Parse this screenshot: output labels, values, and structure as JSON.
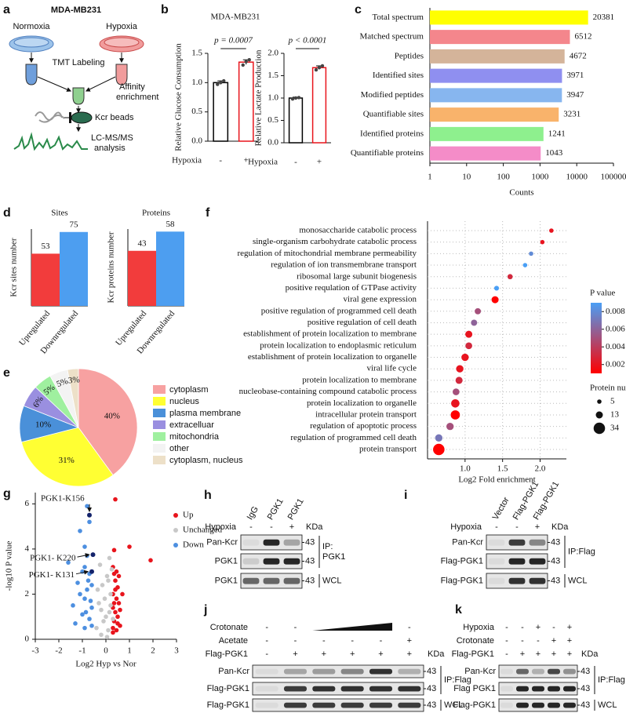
{
  "workflow": {
    "label": "a",
    "cell_line": "MDA-MB231",
    "conditions": [
      "Normoxia",
      "Hypoxia"
    ],
    "labeling": "TMT Labeling",
    "enrichment": [
      "Affinity",
      "enrichment"
    ],
    "beads": "Kcr beads",
    "analysis": [
      "LC-MS/MS",
      "analysis"
    ]
  },
  "chart_data": [
    {
      "type": "bar",
      "panel": "b",
      "title": "MDA-MB231",
      "y_label": "Relative Glucose Consumption",
      "x_label": "Hypoxia",
      "categories": [
        "-",
        "+"
      ],
      "values": [
        1.0,
        1.35
      ],
      "errors": [
        0.03,
        0.04
      ],
      "points": [
        [
          0.97,
          1.0,
          1.03
        ],
        [
          1.3,
          1.36,
          1.39
        ]
      ],
      "colors": [
        "#000000",
        "#e8141c"
      ],
      "fill": "#ffffff",
      "ylim": [
        0,
        1.5
      ],
      "yticks": [
        {
          "value": 0,
          "label": "0.0"
        },
        0.5,
        {
          "value": 1,
          "label": "1.0"
        },
        1.5
      ],
      "annotation": "p = 0.0007"
    },
    {
      "type": "bar",
      "y_label": "Relative Lactate Production",
      "x_label": "Hypoxia",
      "categories": [
        "-",
        "+"
      ],
      "values": [
        1.0,
        1.68
      ],
      "errors": [
        0.02,
        0.04
      ],
      "points": [
        [
          0.98,
          1.0,
          1.01
        ],
        [
          1.63,
          1.68,
          1.72
        ]
      ],
      "colors": [
        "#000000",
        "#e8141c"
      ],
      "fill": "#ffffff",
      "ylim": [
        0,
        2
      ],
      "yticks": [
        {
          "value": 0,
          "label": "0.0"
        },
        0.5,
        {
          "value": 1,
          "label": "1.0"
        },
        1.5,
        {
          "value": 2,
          "label": "2.0"
        }
      ],
      "annotation": "p < 0.0001"
    },
    {
      "type": "bar",
      "panel": "c",
      "horizontal": true,
      "log_x": true,
      "categories": [
        "Total spectrum",
        "Matched spectrum",
        "Peptides",
        "Identified sites",
        "Modified peptides",
        "Quantifiable sites",
        "Identified proteins",
        "Quantifiable proteins"
      ],
      "values": [
        20381,
        6512,
        4672,
        3971,
        3947,
        3231,
        1241,
        1043
      ],
      "colors": [
        "#ffff00",
        "#f4868c",
        "#d4b49a",
        "#8f8ff0",
        "#87b6ef",
        "#f9b36b",
        "#8ef08e",
        "#f48cc8"
      ],
      "xlim": [
        1,
        100000
      ],
      "xticks": [
        1,
        10,
        100,
        1000,
        10000,
        100000
      ],
      "x_label": "Counts",
      "data_labels": true
    },
    {
      "type": "bar",
      "panel": "d",
      "title": "Sites",
      "y_label": "Kcr sites number",
      "categories": [
        "Upregulated",
        "Downregulated"
      ],
      "values": [
        53,
        75
      ],
      "colors": [
        "#f23c3c",
        "#4d9ef0"
      ],
      "ylim": [
        0,
        78
      ],
      "data_labels": true
    },
    {
      "type": "bar",
      "title": "Proteins",
      "y_label": "Kcr proteins number",
      "categories": [
        "Upregulated",
        "Downregulated"
      ],
      "values": [
        43,
        58
      ],
      "colors": [
        "#f23c3c",
        "#4d9ef0"
      ],
      "ylim": [
        0,
        60
      ],
      "data_labels": true
    },
    {
      "type": "pie",
      "panel": "e",
      "categories": [
        "cytoplasm",
        "nucleus",
        "plasma membrane",
        "extracelluar",
        "mitochondria",
        "other",
        "cytoplasm, nucleus"
      ],
      "values": [
        40,
        31,
        10,
        6,
        5,
        5,
        3
      ],
      "value_labels": [
        "40%",
        "31%",
        "10%",
        "6%",
        "5%",
        "5%",
        "3%"
      ],
      "colors": [
        "#f7a1a1",
        "#ffff33",
        "#4a90d9",
        "#9a8fe0",
        "#9ff09f",
        "#f3f3f3",
        "#ede0c8"
      ]
    },
    {
      "type": "bubble",
      "panel": "f",
      "categories": [
        "monosaccharide catabolic process",
        "single-organism carbohydrate catabolic process",
        "regulation of mitochondrial membrane permeability",
        "regulation of ion transmembrane transport",
        "ribosomal large subunit biogenesis",
        "positive requlation of GTPase activity",
        "viral gene expression",
        "positive regulation of programmed cell death",
        "positive regulation of cell death",
        "establishment of protein localization to membrane",
        "protein localization to endoplasmic reticulum",
        "establishment of protein localization to organelle",
        "viral life cycle",
        "protein localization to membrane",
        "nucleobase-containing compound catabolic process",
        "protein localization to organelle",
        "intracellular protein transport",
        "regulation of apoptotic process",
        "regulation of programmed cell death",
        "protein transport"
      ],
      "x": [
        2.15,
        2.03,
        1.88,
        1.8,
        1.6,
        1.42,
        1.4,
        1.17,
        1.12,
        1.05,
        1.05,
        1.0,
        0.93,
        0.92,
        0.88,
        0.87,
        0.87,
        0.8,
        0.65,
        0.65
      ],
      "pvalues": [
        0.002,
        0.002,
        0.008,
        0.009,
        0.003,
        0.009,
        0.001,
        0.005,
        0.006,
        0.002,
        0.003,
        0.002,
        0.002,
        0.003,
        0.005,
        0.002,
        0.001,
        0.005,
        0.007,
        0.001
      ],
      "sizes": [
        5,
        5,
        5,
        5,
        7,
        6,
        13,
        10,
        10,
        13,
        12,
        14,
        14,
        13,
        12,
        18,
        22,
        14,
        14,
        34
      ],
      "xlim": [
        0.5,
        2.35
      ],
      "xticks": [
        {
          "value": 1,
          "label": "1.0"
        },
        1.5,
        {
          "value": 2,
          "label": "2.0"
        }
      ],
      "x_label": "Log2 Fold enrichment",
      "grid": true,
      "color_label": "P value",
      "color_range": [
        0.001,
        0.009
      ],
      "color_ticks": [
        0.002,
        0.004,
        0.006,
        0.008
      ],
      "colors": [
        "#ff0000",
        "#4a9ff5"
      ],
      "size_label": "Protein number",
      "size_ticks": [
        5,
        13,
        34
      ]
    },
    {
      "type": "scatter",
      "panel": "g",
      "y_label": "-log10 P value",
      "x_label": "Log2 Hyp vs Nor",
      "xlim": [
        -3,
        3
      ],
      "xticks": [
        -3,
        -2,
        -1,
        0,
        1,
        2,
        3
      ],
      "ylim": [
        0,
        6.5
      ],
      "yticks": [
        0,
        2,
        4,
        6
      ],
      "series": [
        {
          "name": "Up",
          "color": "#e8141c",
          "x": [
            0.4,
            0.35,
            1.0,
            1.9,
            0.3,
            0.35,
            0.4,
            0.5,
            0.3,
            0.45,
            0.55,
            0.3,
            0.4,
            0.5,
            0.35,
            0.6,
            0.3,
            0.45,
            0.55,
            0.4,
            0.6,
            0.5,
            0.35,
            0.45,
            0.7,
            0.3
          ],
          "y": [
            6.2,
            3.95,
            4.1,
            3.5,
            3.2,
            2.9,
            2.6,
            2.3,
            2.0,
            1.8,
            1.6,
            1.4,
            1.2,
            1.0,
            0.8,
            0.6,
            0.5,
            0.4,
            2.8,
            2.2,
            1.3,
            0.7,
            1.6,
            3.0,
            2.0,
            0.3
          ]
        },
        {
          "name": "Unchanged",
          "color": "#c8c8c8",
          "x": [
            -0.2,
            0.1,
            -0.1,
            0.15,
            -0.3,
            0.2,
            -0.15,
            0.05,
            0.25,
            -0.25,
            0.0,
            -0.4,
            0.3,
            -0.05,
            0.1,
            -0.35,
            0.2,
            -0.2,
            0.05,
            0.15
          ],
          "y": [
            0.2,
            0.4,
            0.8,
            1.2,
            1.6,
            2.0,
            2.4,
            2.8,
            3.1,
            3.3,
            1.0,
            0.5,
            0.9,
            1.8,
            2.6,
            2.2,
            1.5,
            1.3,
            0.1,
            3.6
          ]
        },
        {
          "name": "Down",
          "color": "#4d8fe0",
          "x": [
            -0.8,
            -0.7,
            -1.1,
            -0.9,
            -0.8,
            -1.6,
            -0.9,
            -0.7,
            -1.2,
            -0.8,
            -1.4,
            -0.9,
            -0.6,
            -1.0,
            -0.7,
            -1.3,
            -0.6,
            -0.9,
            -0.75,
            -1.1,
            -0.65,
            -1.0,
            -0.85,
            -0.6
          ],
          "y": [
            5.9,
            5.2,
            4.8,
            4.1,
            3.7,
            3.4,
            3.2,
            2.9,
            2.5,
            2.2,
            1.5,
            1.8,
            1.4,
            1.1,
            0.9,
            0.7,
            0.6,
            0.5,
            2.6,
            2.0,
            1.7,
            3.0,
            1.2,
            2.4
          ]
        }
      ],
      "annotations": [
        {
          "text": "PGK1-K156",
          "x": -0.7,
          "y": 5.5
        },
        {
          "text": "PGK1- K220",
          "x": -0.55,
          "y": 3.75
        },
        {
          "text": "PGK1- K131",
          "x": -0.6,
          "y": 3.0
        }
      ]
    }
  ],
  "blots": [
    {
      "panel": "h",
      "lanes": [
        "IgG",
        "PGK1",
        "PGK1"
      ],
      "conditions": [
        {
          "name": "Hypoxia",
          "marks": [
            "-",
            "-",
            "+"
          ]
        }
      ],
      "unit": "KDa",
      "rows": [
        {
          "name": "Pan-Kcr",
          "kda": "43"
        },
        {
          "name": "PGK1",
          "kda": "43"
        },
        {
          "name": "PGK1",
          "kda": "43"
        }
      ],
      "groups": [
        [
          "IP:",
          "PGK1"
        ],
        [
          "WCL"
        ]
      ]
    },
    {
      "panel": "i",
      "lanes": [
        "Vector",
        "Flag-PGK1",
        "Flag-PGK1"
      ],
      "conditions": [
        {
          "name": "Hypoxia",
          "marks": [
            "-",
            "-",
            "+"
          ]
        }
      ],
      "unit": "KDa",
      "rows": [
        {
          "name": "Pan-Kcr",
          "kda": "43"
        },
        {
          "name": "Flag-PGK1",
          "kda": "43"
        },
        {
          "name": "Flag-PGK1",
          "kda": "43"
        }
      ],
      "groups": [
        [
          "IP:Flag"
        ],
        [
          "WCL"
        ]
      ]
    },
    {
      "panel": "j",
      "conditions": [
        {
          "name": "Crotonate",
          "marks": [
            "-",
            "-",
            null,
            null,
            null,
            "-"
          ]
        },
        {
          "name": "Acetate",
          "marks": [
            "-",
            "-",
            "-",
            "-",
            "-",
            "+"
          ]
        },
        {
          "name": "Flag-PGK1",
          "marks": [
            "-",
            "+",
            "+",
            "+",
            "+",
            "+"
          ]
        }
      ],
      "unit": "KDa",
      "rows": [
        {
          "name": "Pan-Kcr",
          "kda": "43"
        },
        {
          "name": "Flag-PGK1",
          "kda": "43"
        },
        {
          "name": "Flag-PGK1",
          "kda": "43"
        }
      ],
      "groups": [
        [
          "IP:Flag"
        ],
        [
          "WCL"
        ]
      ]
    },
    {
      "panel": "k",
      "conditions": [
        {
          "name": "Hypoxia",
          "marks": [
            "-",
            "-",
            "+",
            "-",
            "+"
          ]
        },
        {
          "name": "Crotonate",
          "marks": [
            "-",
            "-",
            "-",
            "+",
            "+"
          ]
        },
        {
          "name": "Flag-PGK1",
          "marks": [
            "-",
            "+",
            "+",
            "+",
            "+"
          ]
        }
      ],
      "unit": "KDa",
      "rows": [
        {
          "name": "Pan-Kcr",
          "kda": "43"
        },
        {
          "name": "Flag PGK1",
          "kda": "43"
        },
        {
          "name": "Flag-PGK1",
          "kda": "43"
        }
      ],
      "groups": [
        [
          "IP:Flag"
        ],
        [
          "WCL"
        ]
      ]
    }
  ]
}
